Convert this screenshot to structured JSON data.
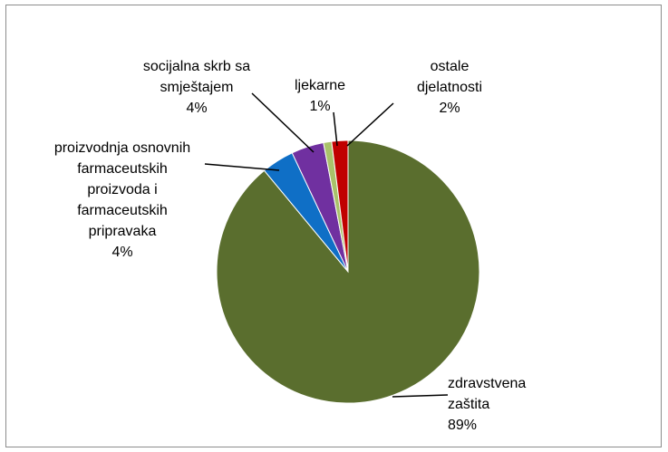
{
  "chart_data": {
    "type": "pie",
    "title": "",
    "start_angle_deg": 0,
    "direction": "clockwise",
    "slices": [
      {
        "label_lines": [
          "zdravstvena",
          "zaštita"
        ],
        "value": 89,
        "value_label": "89%",
        "color": "#5a6e2e"
      },
      {
        "label_lines": [
          "proizvodnja osnovnih",
          "farmaceutskih",
          "proizvoda i",
          "farmaceutskih",
          "pripravaka"
        ],
        "value": 4,
        "value_label": "4%",
        "color": "#0f6fc6"
      },
      {
        "label_lines": [
          "socijalna skrb sa",
          "smještajem"
        ],
        "value": 4,
        "value_label": "4%",
        "color": "#7030a0"
      },
      {
        "label_lines": [
          "ljekarne"
        ],
        "value": 1,
        "value_label": "1%",
        "color": "#a9c26a"
      },
      {
        "label_lines": [
          "ostale",
          "djelatnosti"
        ],
        "value": 2,
        "value_label": "2%",
        "color": "#c00000"
      }
    ]
  }
}
